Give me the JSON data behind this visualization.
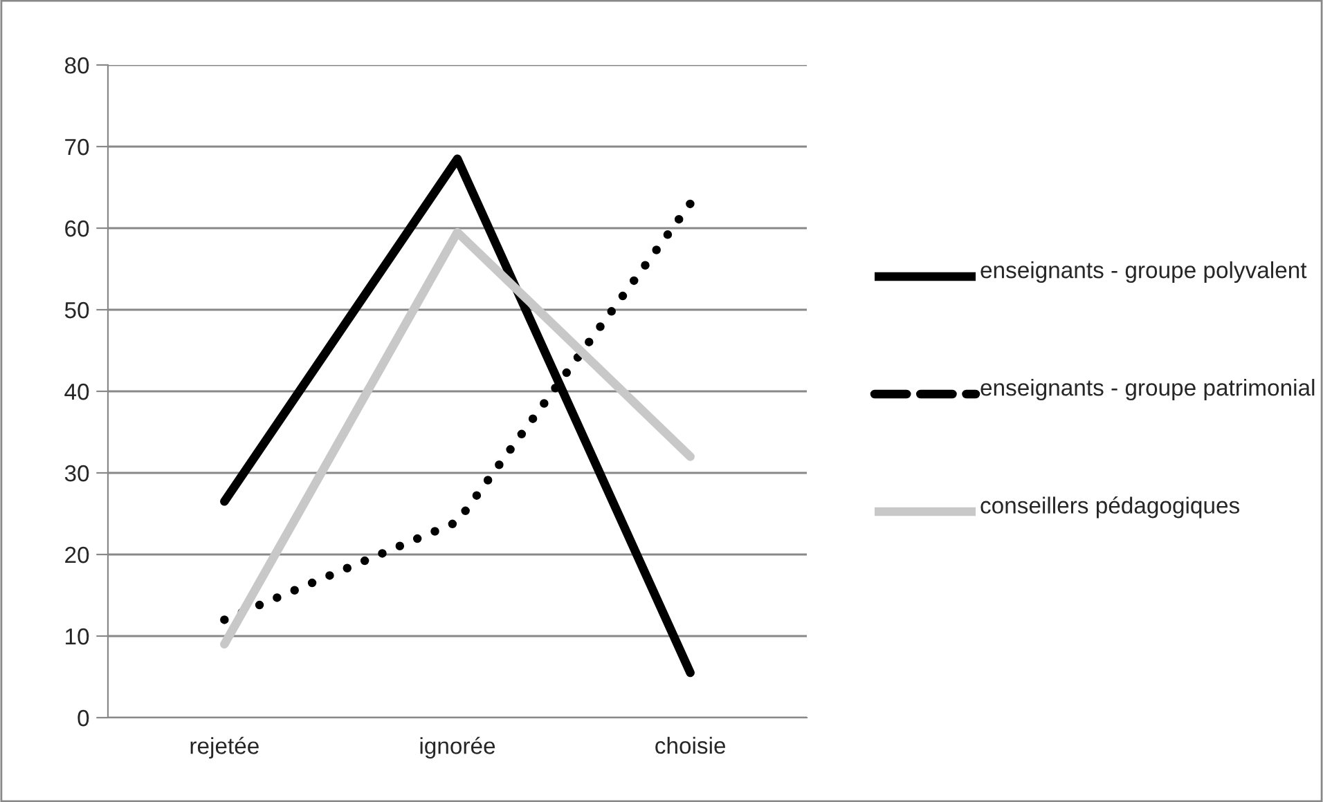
{
  "chart_data": {
    "type": "line",
    "categories": [
      "rejetée",
      "ignorée",
      "choisie"
    ],
    "series": [
      {
        "name": "enseignants - groupe polyvalent",
        "color": "#000000",
        "line_style": "solid",
        "values": [
          26.5,
          68.5,
          5.5
        ]
      },
      {
        "name": "enseignants - groupe patrimonial",
        "color": "#000000",
        "line_style": "dotted",
        "values": [
          12,
          24,
          63
        ]
      },
      {
        "name": "conseillers pédagogiques",
        "color": "#c8c8c8",
        "line_style": "solid",
        "values": [
          9,
          59.5,
          32
        ]
      }
    ],
    "ylim": [
      0,
      80
    ],
    "yticks": [
      0,
      10,
      20,
      30,
      40,
      50,
      60,
      70,
      80
    ],
    "grid": "y",
    "legend": "right",
    "marker": "none"
  }
}
